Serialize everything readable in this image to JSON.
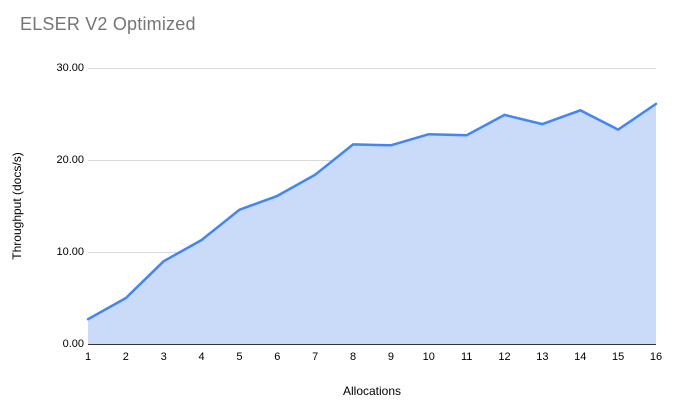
{
  "chart_data": {
    "type": "area",
    "title": "ELSER V2 Optimized",
    "xlabel": "Allocations",
    "ylabel": "Throughput (docs/s)",
    "categories": [
      "1",
      "2",
      "3",
      "4",
      "5",
      "6",
      "7",
      "8",
      "9",
      "10",
      "11",
      "12",
      "13",
      "14",
      "15",
      "16"
    ],
    "series": [
      {
        "name": "Throughput",
        "values": [
          2.7,
          5.0,
          9.0,
          11.3,
          14.6,
          16.1,
          18.4,
          21.7,
          21.6,
          22.8,
          22.7,
          24.9,
          23.9,
          25.4,
          23.3,
          26.1
        ]
      }
    ],
    "ylim": [
      0,
      30
    ],
    "ytick_values": [
      0,
      10,
      20,
      30
    ],
    "ytick_labels": [
      "0.00",
      "10.00",
      "20.00",
      "30.00"
    ],
    "grid": true,
    "legend_position": "none",
    "colors": {
      "line": "#4285f4",
      "area_fill": "#c9dbf8",
      "gridline": "#d9d9d9",
      "baseline": "#333333",
      "title_text": "#757575",
      "axis_text": "#000000",
      "background": "#ffffff"
    }
  }
}
